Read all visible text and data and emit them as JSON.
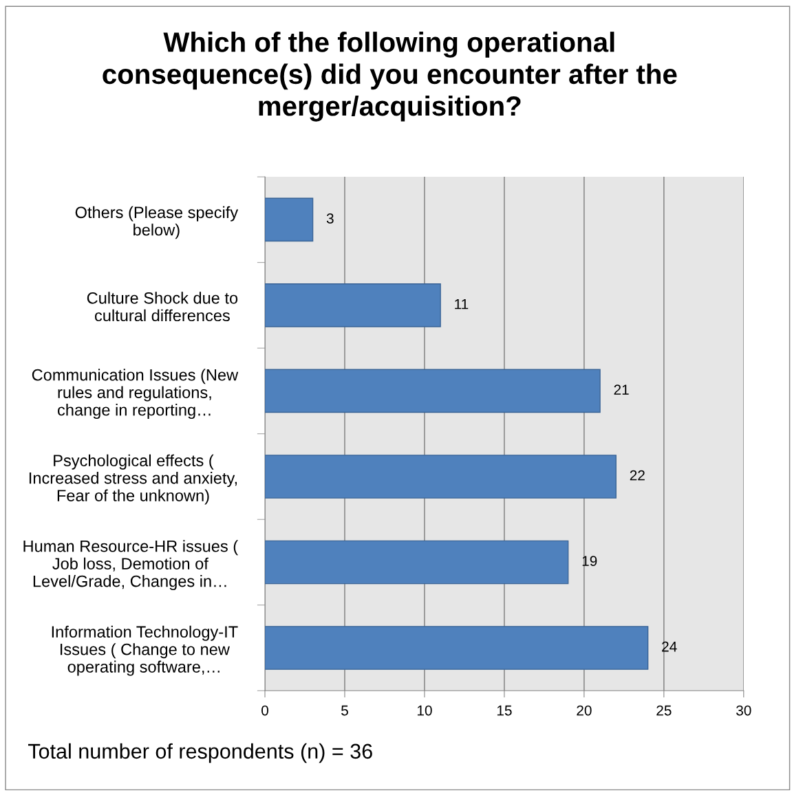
{
  "chart_data": {
    "type": "bar",
    "orientation": "horizontal",
    "title": "Which of the following operational\nconsequence(s) did you encounter after the\nmerger/acquisition?",
    "categories": [
      "Others (Please specify\nbelow)",
      "Culture Shock due to\ncultural differences",
      "Communication Issues (New\nrules and regulations,\nchange in reporting…",
      "Psychological effects (\nIncreased stress and anxiety,\nFear of the unknown)",
      "Human Resource-HR issues (\nJob loss, Demotion of\nLevel/Grade, Changes in…",
      "Information Technology-IT\nIssues ( Change to new\noperating software,…"
    ],
    "values": [
      3,
      11,
      21,
      22,
      19,
      24
    ],
    "data_labels": true,
    "color": "#4f81bd",
    "xlim": [
      0,
      30
    ],
    "xticks": [
      0,
      5,
      10,
      15,
      20,
      25,
      30
    ],
    "grid": "x",
    "annotations": [
      "Total number of respondents (n) = 36"
    ]
  }
}
